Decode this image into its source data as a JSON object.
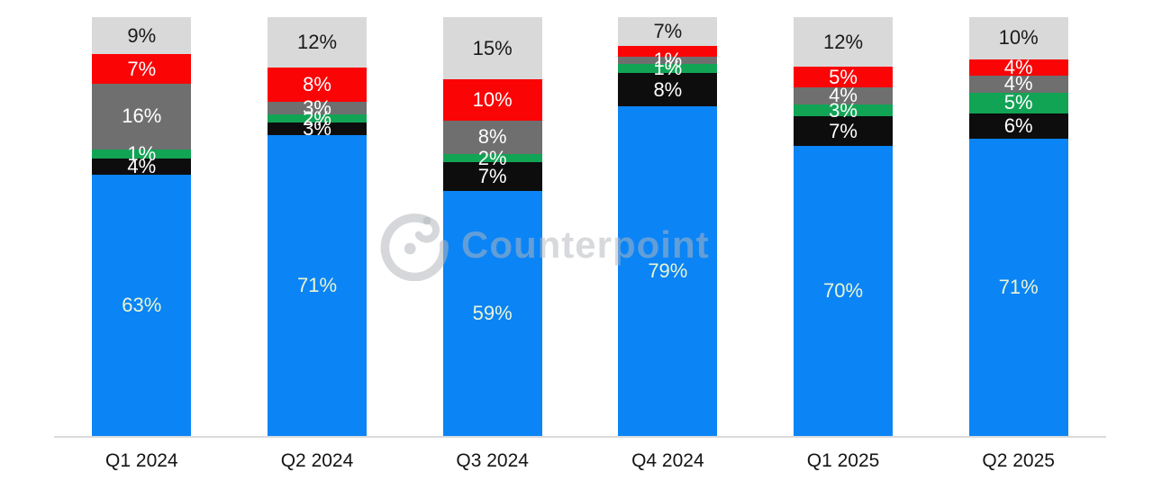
{
  "watermark": {
    "brand": "Counterpoint",
    "logo": "counterpoint-c-swirl-logo"
  },
  "colors": {
    "blue": "#0B84F6",
    "black": "#0D0D0D",
    "green": "#12A455",
    "gray": "#6F6F6F",
    "red": "#FB0406",
    "lightgray": "#D9D9D9",
    "axis_line": "#DADADA",
    "blue_label_text": "#EAF5D3",
    "lightgray_label_text": "#1A1A1A",
    "white_label_text": "#FFFFFF",
    "xlabel_text": "#151515"
  },
  "chart_data": {
    "type": "bar",
    "stacked": true,
    "unit": "%",
    "title": "",
    "legend": "none",
    "value_labels": "on-segments",
    "ylim": [
      0,
      100
    ],
    "grid": false,
    "categories": [
      "Q1 2024",
      "Q2 2024",
      "Q3 2024",
      "Q4 2024",
      "Q1 2025",
      "Q2 2025"
    ],
    "series": [
      {
        "name": "blue-segment",
        "color": "#0B84F6",
        "values": [
          63,
          71,
          59,
          79,
          70,
          71
        ]
      },
      {
        "name": "black-segment",
        "color": "#0D0D0D",
        "values": [
          4,
          3,
          7,
          8,
          7,
          6
        ]
      },
      {
        "name": "green-segment",
        "color": "#12A455",
        "values": [
          1,
          2,
          2,
          1,
          3,
          5
        ]
      },
      {
        "name": "gray-segment",
        "color": "#6F6F6F",
        "values": [
          16,
          3,
          8,
          1,
          4,
          4
        ]
      },
      {
        "name": "red-segment",
        "color": "#FB0406",
        "values": [
          7,
          8,
          10,
          2,
          5,
          4
        ]
      },
      {
        "name": "lightgray-segment",
        "color": "#D9D9D9",
        "values": [
          9,
          12,
          15,
          7,
          12,
          10
        ]
      }
    ],
    "bars": [
      {
        "category": "Q1 2024",
        "segments_top_to_bottom": [
          {
            "key": "lightgray",
            "label": "9%",
            "value": 9
          },
          {
            "key": "red",
            "label": "7%",
            "value": 7
          },
          {
            "key": "gray",
            "label": "16%",
            "value": 16
          },
          {
            "key": "green",
            "label": "1%",
            "value": 1,
            "h": 2
          },
          {
            "key": "black",
            "label": "4%",
            "value": 4
          },
          {
            "key": "blue",
            "label": "63%",
            "value": 63
          }
        ]
      },
      {
        "category": "Q2 2024",
        "segments_top_to_bottom": [
          {
            "key": "lightgray",
            "label": "12%",
            "value": 12
          },
          {
            "key": "red",
            "label": "8%",
            "value": 8
          },
          {
            "key": "gray",
            "label": "3%",
            "value": 3
          },
          {
            "key": "green",
            "label": "2%",
            "value": 2
          },
          {
            "key": "black",
            "label": "3%",
            "value": 3
          },
          {
            "key": "blue",
            "label": "71%",
            "value": 71
          }
        ]
      },
      {
        "category": "Q3 2024",
        "segments_top_to_bottom": [
          {
            "key": "lightgray",
            "label": "15%",
            "value": 15
          },
          {
            "key": "red",
            "label": "10%",
            "value": 10
          },
          {
            "key": "gray",
            "label": "8%",
            "value": 8
          },
          {
            "key": "green",
            "label": "2%",
            "value": 2
          },
          {
            "key": "black",
            "label": "7%",
            "value": 7
          },
          {
            "key": "blue",
            "label": "59%",
            "value": 59
          }
        ]
      },
      {
        "category": "Q4 2024",
        "segments_top_to_bottom": [
          {
            "key": "lightgray",
            "label": "7%",
            "value": 7
          },
          {
            "key": "red",
            "label": "",
            "value": 2,
            "h": 2.5
          },
          {
            "key": "gray",
            "label": "1%",
            "value": 1,
            "h": 1.7
          },
          {
            "key": "green",
            "label": "1%",
            "value": 1,
            "h": 2.2
          },
          {
            "key": "black",
            "label": "8%",
            "value": 8
          },
          {
            "key": "blue",
            "label": "79%",
            "value": 79
          }
        ]
      },
      {
        "category": "Q1 2025",
        "segments_top_to_bottom": [
          {
            "key": "lightgray",
            "label": "12%",
            "value": 12
          },
          {
            "key": "red",
            "label": "5%",
            "value": 5
          },
          {
            "key": "gray",
            "label": "4%",
            "value": 4
          },
          {
            "key": "green",
            "label": "3%",
            "value": 3
          },
          {
            "key": "black",
            "label": "7%",
            "value": 7
          },
          {
            "key": "blue",
            "label": "70%",
            "value": 70
          }
        ]
      },
      {
        "category": "Q2 2025",
        "segments_top_to_bottom": [
          {
            "key": "lightgray",
            "label": "10%",
            "value": 10
          },
          {
            "key": "red",
            "label": "4%",
            "value": 4
          },
          {
            "key": "gray",
            "label": "4%",
            "value": 4
          },
          {
            "key": "green",
            "label": "5%",
            "value": 5
          },
          {
            "key": "black",
            "label": "6%",
            "value": 6
          },
          {
            "key": "blue",
            "label": "71%",
            "value": 71
          }
        ]
      }
    ]
  }
}
